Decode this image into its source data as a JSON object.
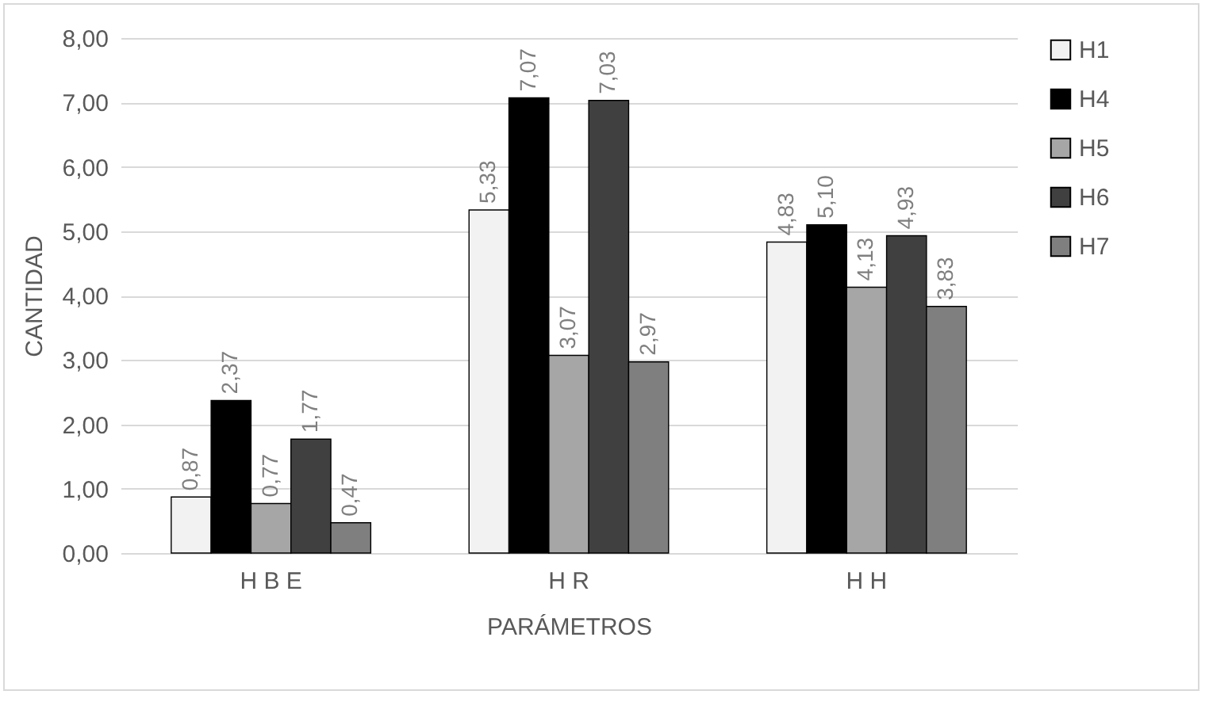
{
  "chart_data": {
    "type": "bar",
    "xlabel": "PARÁMETROS",
    "ylabel": "CANTIDAD",
    "categories": [
      "H B E",
      "H R",
      "H H"
    ],
    "series": [
      {
        "name": "H1",
        "color": "#f2f2f2",
        "values": [
          0.87,
          5.33,
          4.83
        ],
        "value_labels": [
          "0,87",
          "5,33",
          "4,83"
        ]
      },
      {
        "name": "H4",
        "color": "#000000",
        "values": [
          2.37,
          7.07,
          5.1
        ],
        "value_labels": [
          "2,37",
          "7,07",
          "5,10"
        ]
      },
      {
        "name": "H5",
        "color": "#a6a6a6",
        "values": [
          0.77,
          3.07,
          4.13
        ],
        "value_labels": [
          "0,77",
          "3,07",
          "4,13"
        ]
      },
      {
        "name": "H6",
        "color": "#404040",
        "values": [
          1.77,
          7.03,
          4.93
        ],
        "value_labels": [
          "1,77",
          "7,03",
          "4,93"
        ]
      },
      {
        "name": "H7",
        "color": "#7f7f7f",
        "values": [
          0.47,
          2.97,
          3.83
        ],
        "value_labels": [
          "0,47",
          "2,97",
          "3,83"
        ]
      }
    ],
    "ylim": [
      0,
      8
    ],
    "yticks": [
      {
        "value": 0,
        "label": "0,00"
      },
      {
        "value": 1,
        "label": "1,00"
      },
      {
        "value": 2,
        "label": "2,00"
      },
      {
        "value": 3,
        "label": "3,00"
      },
      {
        "value": 4,
        "label": "4,00"
      },
      {
        "value": 5,
        "label": "5,00"
      },
      {
        "value": 6,
        "label": "6,00"
      },
      {
        "value": 7,
        "label": "7,00"
      },
      {
        "value": 8,
        "label": "8,00"
      }
    ],
    "grid": "y",
    "legend": "right"
  }
}
